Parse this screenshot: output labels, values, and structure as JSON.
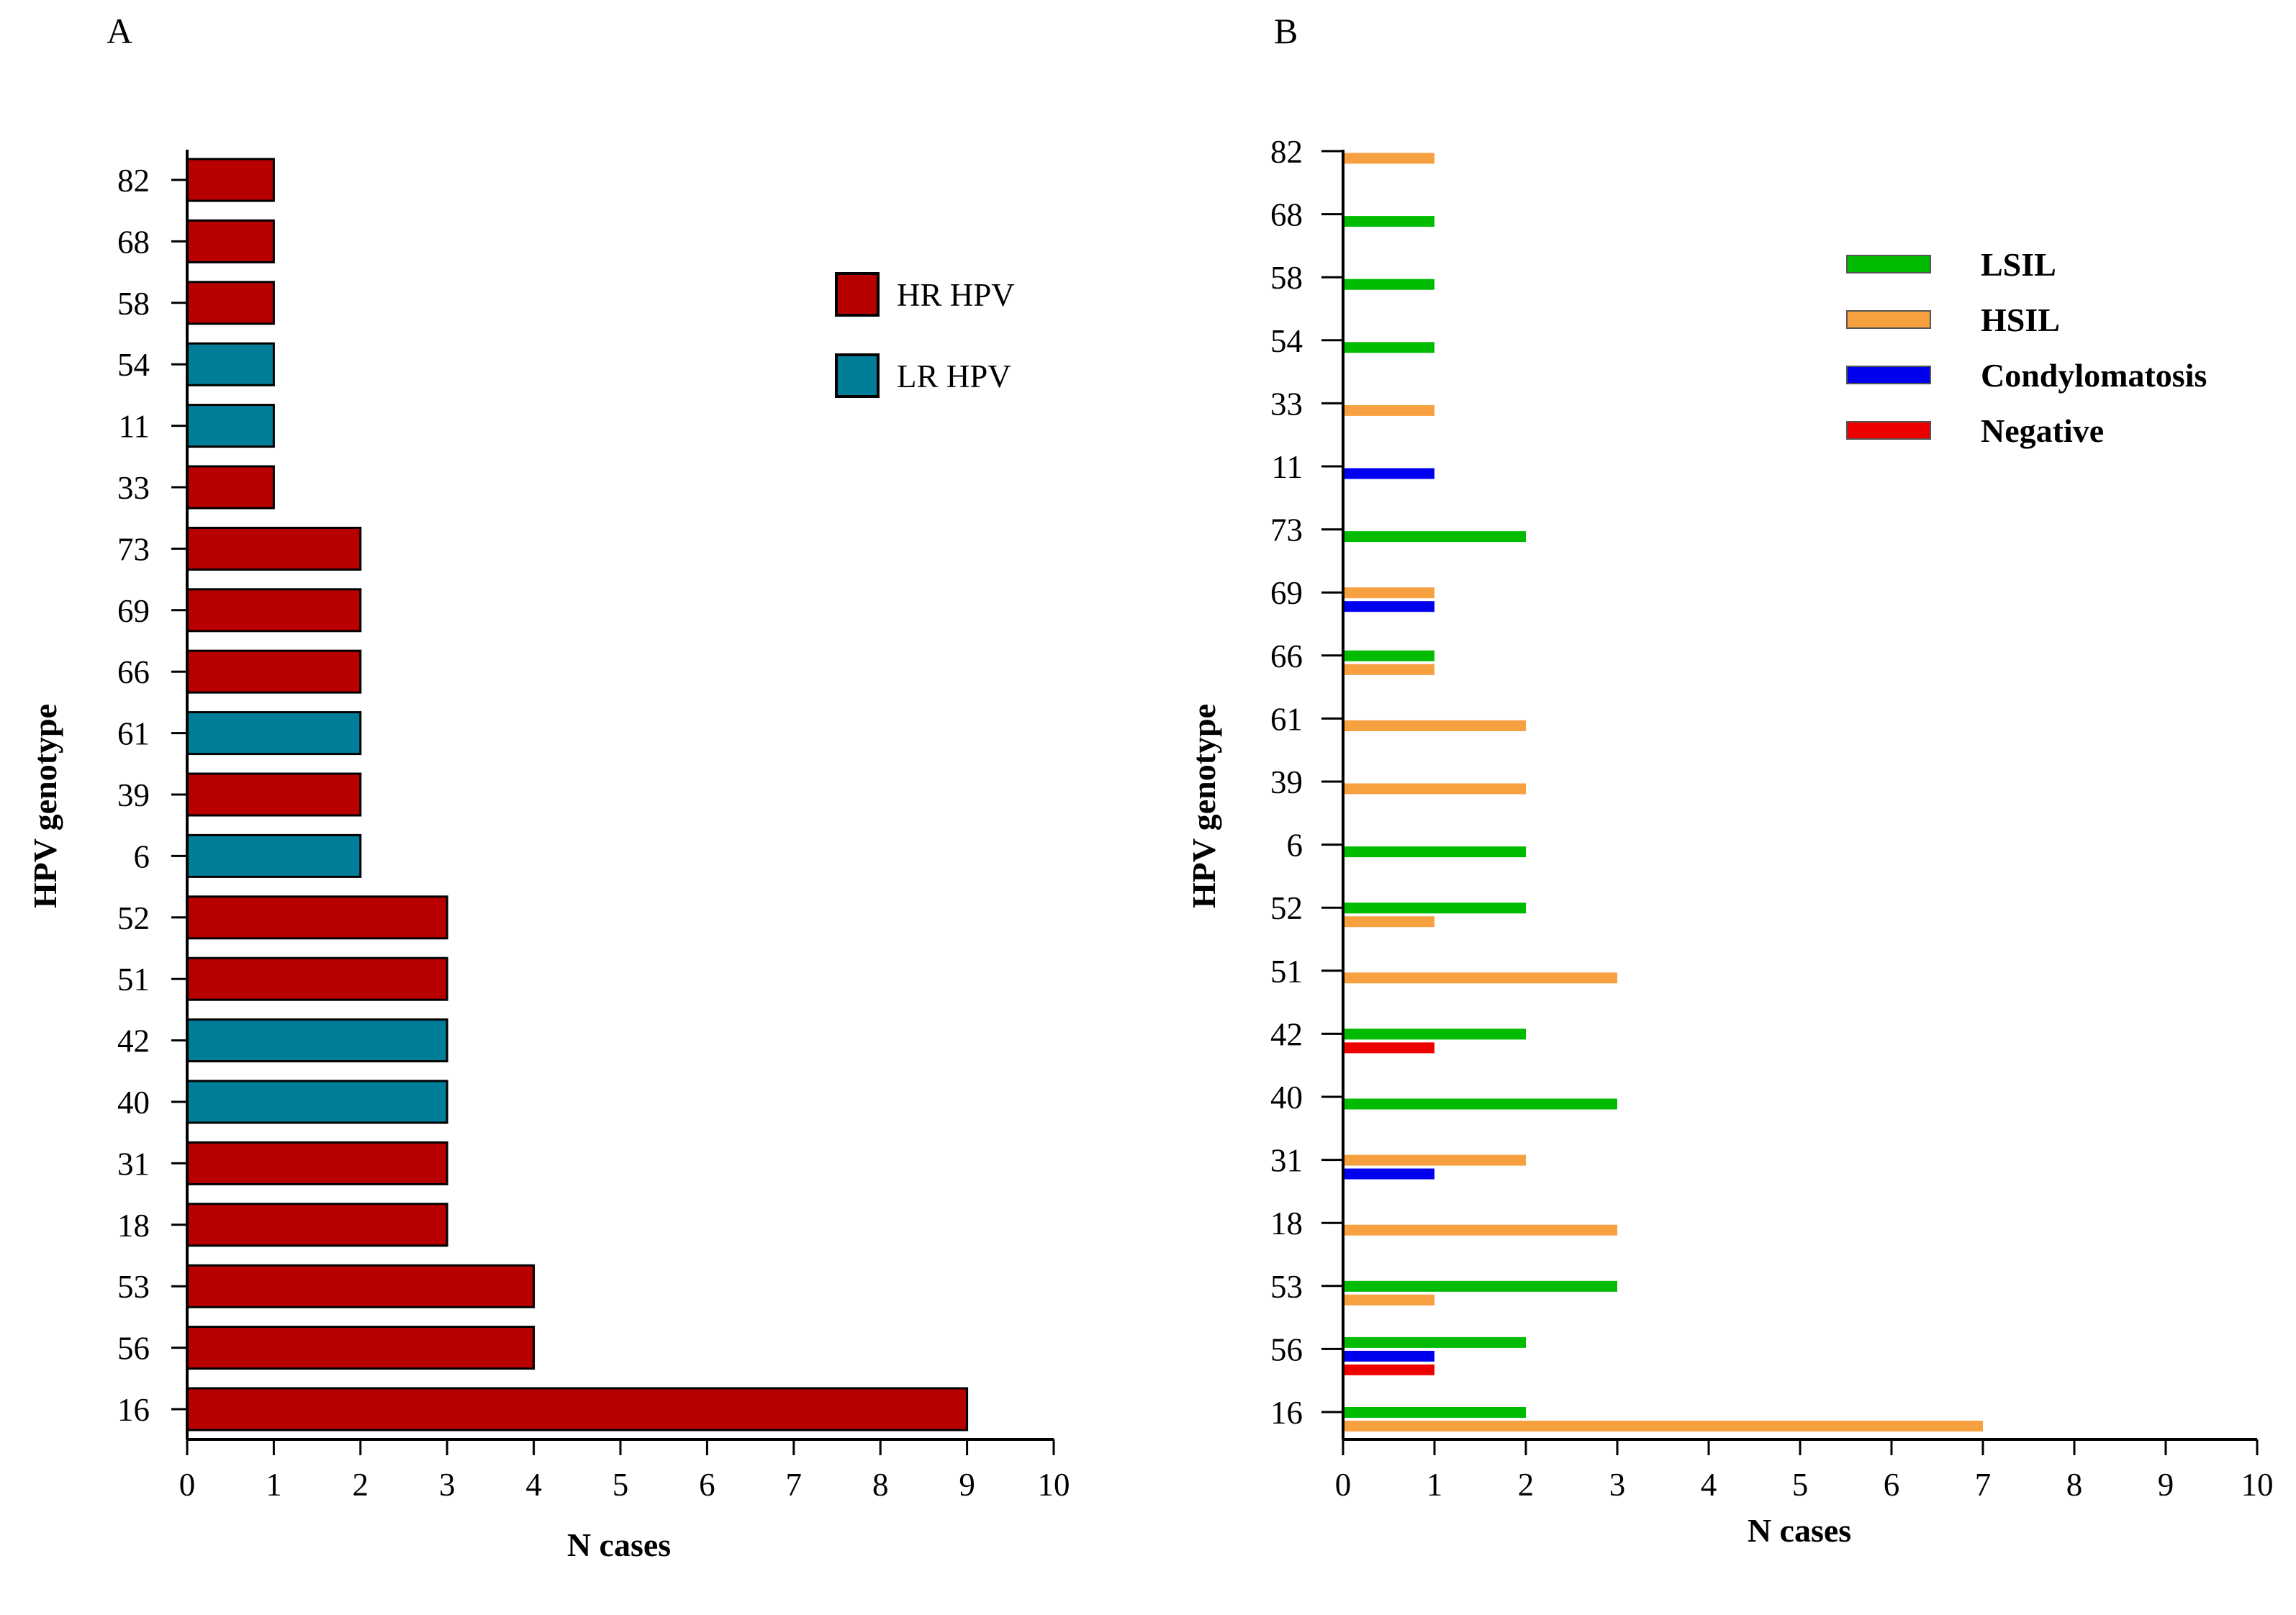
{
  "chart_data": [
    {
      "type": "bar",
      "orientation": "horizontal",
      "panel_label": "A",
      "xlabel": "N cases",
      "ylabel": "HPV genotype",
      "xlim": [
        0,
        10
      ],
      "xticks": [
        0,
        1,
        2,
        3,
        4,
        5,
        6,
        7,
        8,
        9,
        10
      ],
      "categories": [
        "16",
        "56",
        "53",
        "18",
        "31",
        "40",
        "42",
        "51",
        "52",
        "6",
        "39",
        "61",
        "66",
        "69",
        "73",
        "33",
        "11",
        "54",
        "58",
        "68",
        "82"
      ],
      "values": [
        9,
        4,
        4,
        3,
        3,
        3,
        3,
        3,
        3,
        2,
        2,
        2,
        2,
        2,
        2,
        1,
        1,
        1,
        1,
        1,
        1
      ],
      "risk_group": [
        "HR HPV",
        "HR HPV",
        "HR HPV",
        "HR HPV",
        "HR HPV",
        "LR HPV",
        "LR HPV",
        "HR HPV",
        "HR HPV",
        "LR HPV",
        "HR HPV",
        "LR HPV",
        "HR HPV",
        "HR HPV",
        "HR HPV",
        "HR HPV",
        "LR HPV",
        "LR HPV",
        "HR HPV",
        "HR HPV",
        "HR HPV"
      ],
      "legend": [
        {
          "name": "HR HPV",
          "color": "#b80000"
        },
        {
          "name": "LR HPV",
          "color": "#007d99"
        }
      ],
      "legend_position": "top-right",
      "grid": false
    },
    {
      "type": "bar",
      "orientation": "horizontal",
      "panel_label": "B",
      "xlabel": "N cases",
      "ylabel": "HPV genotype",
      "xlim": [
        0,
        10
      ],
      "xticks": [
        0,
        1,
        2,
        3,
        4,
        5,
        6,
        7,
        8,
        9,
        10
      ],
      "categories": [
        "16",
        "56",
        "53",
        "18",
        "31",
        "40",
        "42",
        "51",
        "52",
        "6",
        "39",
        "61",
        "66",
        "69",
        "73",
        "11",
        "33",
        "54",
        "58",
        "68",
        "82"
      ],
      "series": [
        {
          "name": "LSIL",
          "color": "#00bb00",
          "values": [
            2,
            2,
            3,
            0,
            0,
            3,
            2,
            0,
            2,
            2,
            0,
            0,
            1,
            0,
            2,
            0,
            0,
            1,
            1,
            1,
            0
          ]
        },
        {
          "name": "HSIL",
          "color": "#f7a040",
          "values": [
            7,
            0,
            1,
            3,
            2,
            0,
            0,
            3,
            1,
            0,
            2,
            2,
            1,
            1,
            0,
            0,
            1,
            0,
            0,
            0,
            1
          ]
        },
        {
          "name": "Condylomatosis",
          "color": "#0000ee",
          "values": [
            0,
            1,
            0,
            0,
            1,
            0,
            0,
            0,
            0,
            0,
            0,
            0,
            0,
            1,
            0,
            1,
            0,
            0,
            0,
            0,
            0
          ]
        },
        {
          "name": "Negative",
          "color": "#ee0000",
          "values": [
            0,
            1,
            0,
            0,
            0,
            0,
            1,
            0,
            0,
            0,
            0,
            0,
            0,
            0,
            0,
            0,
            0,
            0,
            0,
            0,
            0
          ]
        }
      ],
      "legend_position": "top-right",
      "grid": false
    }
  ]
}
